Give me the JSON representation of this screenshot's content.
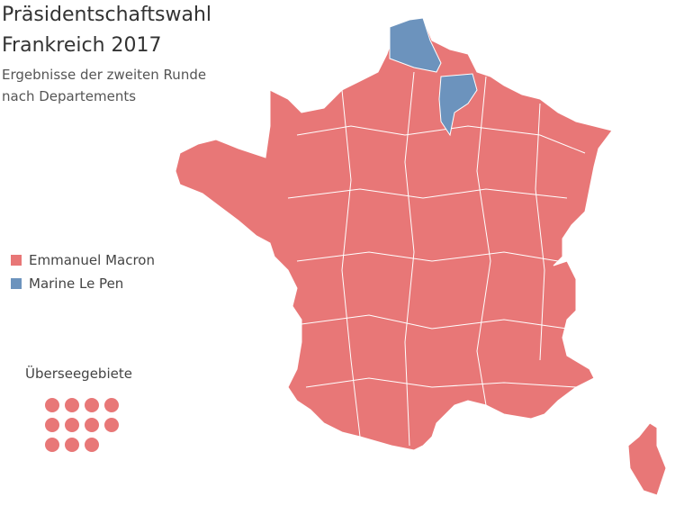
{
  "header": {
    "title": [
      "Präsidentschaftswahl",
      "Frankreich 2017"
    ],
    "subtitle": [
      "Ergebnisse der zweiten Runde",
      "nach Departements"
    ]
  },
  "legend": [
    {
      "name": "Emmanuel Macron",
      "color": "#e87777"
    },
    {
      "name": "Marine Le Pen",
      "color": "#6c93bd"
    }
  ],
  "overseas": {
    "label": "Überseegebiete"
  }
}
